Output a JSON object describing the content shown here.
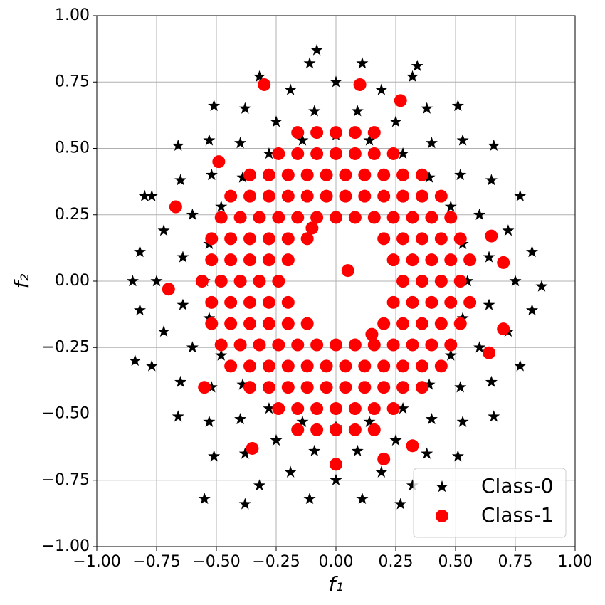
{
  "chart_data": {
    "type": "scatter",
    "x_label": "f₁",
    "y_label": "f₂",
    "xlim": [
      -1,
      1
    ],
    "ylim": [
      -1,
      1
    ],
    "xticks": [
      {
        "value": -1,
        "label": "−1.00"
      },
      {
        "value": -0.75,
        "label": "−0.75"
      },
      {
        "value": -0.5,
        "label": "−0.50"
      },
      {
        "value": -0.25,
        "label": "−0.25"
      },
      {
        "value": 0,
        "label": "0.00"
      },
      {
        "value": 0.25,
        "label": "0.25"
      },
      {
        "value": 0.5,
        "label": "0.50"
      },
      {
        "value": 0.75,
        "label": "0.75"
      },
      {
        "value": 1,
        "label": "1.00"
      }
    ],
    "yticks": [
      {
        "value": -1,
        "label": "−1.00"
      },
      {
        "value": -0.75,
        "label": "−0.75"
      },
      {
        "value": -0.5,
        "label": "−0.50"
      },
      {
        "value": -0.25,
        "label": "−0.25"
      },
      {
        "value": 0,
        "label": "0.00"
      },
      {
        "value": 0.25,
        "label": "0.25"
      },
      {
        "value": 0.5,
        "label": "0.50"
      },
      {
        "value": 0.75,
        "label": "0.75"
      },
      {
        "value": 1,
        "label": "1.00"
      }
    ],
    "grid": true,
    "legend": "lower right",
    "series": [
      {
        "name": "Class-0",
        "color": "#000000",
        "marker": "star",
        "x": [
          0.55,
          0.53,
          0.48,
          0.39,
          0.28,
          0.14,
          0,
          -0.14,
          -0.28,
          -0.39,
          -0.48,
          -0.53,
          -0.55,
          -0.53,
          -0.48,
          -0.39,
          -0.28,
          -0.14,
          0,
          0.14,
          0.28,
          0.39,
          0.48,
          0.53,
          0.75,
          0.72,
          0.65,
          0.53,
          0.38,
          0.19,
          0,
          -0.19,
          -0.38,
          -0.53,
          -0.65,
          -0.72,
          -0.75,
          -0.72,
          -0.65,
          -0.53,
          -0.38,
          -0.19,
          0,
          0.19,
          0.38,
          0.53,
          0.65,
          0.72,
          0.64,
          0.6,
          0.52,
          0.4,
          0.25,
          0.09,
          -0.09,
          -0.25,
          -0.4,
          -0.52,
          -0.6,
          -0.64,
          -0.64,
          -0.6,
          -0.52,
          -0.4,
          -0.25,
          -0.09,
          0.09,
          0.25,
          0.4,
          0.52,
          0.6,
          0.64,
          0.82,
          0.77,
          0.66,
          0.51,
          0.32,
          0.11,
          -0.11,
          -0.32,
          -0.51,
          -0.66,
          -0.77,
          -0.82,
          -0.82,
          -0.77,
          -0.66,
          -0.51,
          -0.32,
          -0.11,
          0.11,
          0.32,
          0.51,
          0.66,
          0.77,
          0.82,
          -0.85,
          -0.84,
          -0.55,
          0.86,
          0.34,
          -0.08,
          0.27,
          -0.38,
          -0.8
        ],
        "values": [
          0,
          0.14,
          0.28,
          0.39,
          0.48,
          0.53,
          0.55,
          0.53,
          0.48,
          0.39,
          0.28,
          0.14,
          0,
          -0.14,
          -0.28,
          -0.39,
          -0.48,
          -0.53,
          -0.55,
          -0.53,
          -0.48,
          -0.39,
          -0.28,
          -0.14,
          0,
          0.19,
          0.38,
          0.53,
          0.65,
          0.72,
          0.75,
          0.72,
          0.65,
          0.53,
          0.38,
          0.19,
          0,
          -0.19,
          -0.38,
          -0.53,
          -0.65,
          -0.72,
          -0.75,
          -0.72,
          -0.65,
          -0.53,
          -0.38,
          -0.19,
          0.09,
          0.25,
          0.4,
          0.52,
          0.6,
          0.64,
          0.64,
          0.6,
          0.52,
          0.4,
          0.25,
          0.09,
          -0.09,
          -0.25,
          -0.4,
          -0.52,
          -0.6,
          -0.64,
          -0.64,
          -0.6,
          -0.52,
          -0.4,
          -0.25,
          -0.09,
          0.11,
          0.32,
          0.51,
          0.66,
          0.77,
          0.82,
          0.82,
          0.77,
          0.66,
          0.51,
          0.32,
          0.11,
          -0.11,
          -0.32,
          -0.51,
          -0.66,
          -0.77,
          -0.82,
          -0.82,
          -0.77,
          -0.66,
          -0.51,
          -0.32,
          -0.11,
          0,
          -0.3,
          -0.82,
          -0.02,
          0.81,
          0.87,
          -0.84,
          -0.84,
          0.32
        ]
      },
      {
        "name": "Class-1",
        "color": "#ff0000",
        "marker": "circle",
        "x": [
          -0.16,
          -0.08,
          0,
          0.08,
          0.16,
          -0.24,
          -0.16,
          -0.08,
          0,
          0.08,
          0.16,
          0.24,
          -0.36,
          -0.28,
          -0.2,
          -0.12,
          -0.04,
          0.04,
          0.12,
          0.2,
          0.28,
          0.36,
          -0.44,
          -0.36,
          -0.28,
          -0.2,
          -0.12,
          -0.04,
          0.04,
          0.12,
          0.2,
          0.28,
          0.36,
          0.44,
          -0.48,
          -0.4,
          -0.32,
          -0.24,
          -0.16,
          -0.08,
          0,
          0.08,
          0.16,
          0.24,
          0.32,
          0.4,
          0.48,
          -0.52,
          -0.44,
          -0.36,
          -0.28,
          -0.2,
          -0.12,
          0.2,
          0.28,
          0.36,
          0.44,
          0.52,
          -0.52,
          -0.44,
          -0.36,
          -0.28,
          -0.2,
          0.24,
          0.32,
          0.4,
          0.48,
          0.56,
          -0.56,
          -0.48,
          -0.4,
          -0.32,
          -0.24,
          0.28,
          0.36,
          0.44,
          0.52,
          -0.52,
          -0.44,
          -0.36,
          -0.28,
          -0.2,
          0.24,
          0.32,
          0.4,
          0.48,
          0.56,
          -0.52,
          -0.44,
          -0.36,
          -0.28,
          -0.2,
          -0.12,
          0.2,
          0.28,
          0.36,
          0.44,
          0.52,
          -0.48,
          -0.4,
          -0.32,
          -0.24,
          -0.16,
          -0.08,
          0,
          0.08,
          0.16,
          0.24,
          0.32,
          0.4,
          0.48,
          -0.44,
          -0.36,
          -0.28,
          -0.2,
          -0.12,
          -0.04,
          0.04,
          0.12,
          0.2,
          0.28,
          0.36,
          0.44,
          -0.36,
          -0.28,
          -0.2,
          -0.12,
          -0.04,
          0.04,
          0.12,
          0.2,
          0.28,
          0.36,
          -0.24,
          -0.16,
          -0.08,
          0,
          0.08,
          0.16,
          0.24,
          -0.16,
          -0.08,
          0,
          0.08,
          0.16,
          -0.3,
          0.1,
          -0.49,
          0.7,
          -0.67,
          0.65,
          0.7,
          0.64,
          -0.55,
          -0.35,
          0.32,
          0,
          0.2,
          0.27,
          -0.7,
          0.05,
          -0.1,
          0.15
        ],
        "values": [
          0.56,
          0.56,
          0.56,
          0.56,
          0.56,
          0.48,
          0.48,
          0.48,
          0.48,
          0.48,
          0.48,
          0.48,
          0.4,
          0.4,
          0.4,
          0.4,
          0.4,
          0.4,
          0.4,
          0.4,
          0.4,
          0.4,
          0.32,
          0.32,
          0.32,
          0.32,
          0.32,
          0.32,
          0.32,
          0.32,
          0.32,
          0.32,
          0.32,
          0.32,
          0.24,
          0.24,
          0.24,
          0.24,
          0.24,
          0.24,
          0.24,
          0.24,
          0.24,
          0.24,
          0.24,
          0.24,
          0.24,
          0.16,
          0.16,
          0.16,
          0.16,
          0.16,
          0.16,
          0.16,
          0.16,
          0.16,
          0.16,
          0.16,
          0.08,
          0.08,
          0.08,
          0.08,
          0.08,
          0.08,
          0.08,
          0.08,
          0.08,
          0.08,
          0,
          0,
          0,
          0,
          0,
          0,
          0,
          0,
          0,
          -0.08,
          -0.08,
          -0.08,
          -0.08,
          -0.08,
          -0.08,
          -0.08,
          -0.08,
          -0.08,
          -0.08,
          -0.16,
          -0.16,
          -0.16,
          -0.16,
          -0.16,
          -0.16,
          -0.16,
          -0.16,
          -0.16,
          -0.16,
          -0.16,
          -0.24,
          -0.24,
          -0.24,
          -0.24,
          -0.24,
          -0.24,
          -0.24,
          -0.24,
          -0.24,
          -0.24,
          -0.24,
          -0.24,
          -0.24,
          -0.32,
          -0.32,
          -0.32,
          -0.32,
          -0.32,
          -0.32,
          -0.32,
          -0.32,
          -0.32,
          -0.32,
          -0.32,
          -0.32,
          -0.4,
          -0.4,
          -0.4,
          -0.4,
          -0.4,
          -0.4,
          -0.4,
          -0.4,
          -0.4,
          -0.4,
          -0.48,
          -0.48,
          -0.48,
          -0.48,
          -0.48,
          -0.48,
          -0.48,
          -0.56,
          -0.56,
          -0.56,
          -0.56,
          -0.56,
          0.74,
          0.74,
          0.45,
          0.07,
          0.28,
          0.17,
          -0.18,
          -0.27,
          -0.4,
          -0.63,
          -0.62,
          -0.69,
          -0.67,
          0.68,
          -0.03,
          0.04,
          0.2,
          -0.2
        ]
      }
    ]
  }
}
